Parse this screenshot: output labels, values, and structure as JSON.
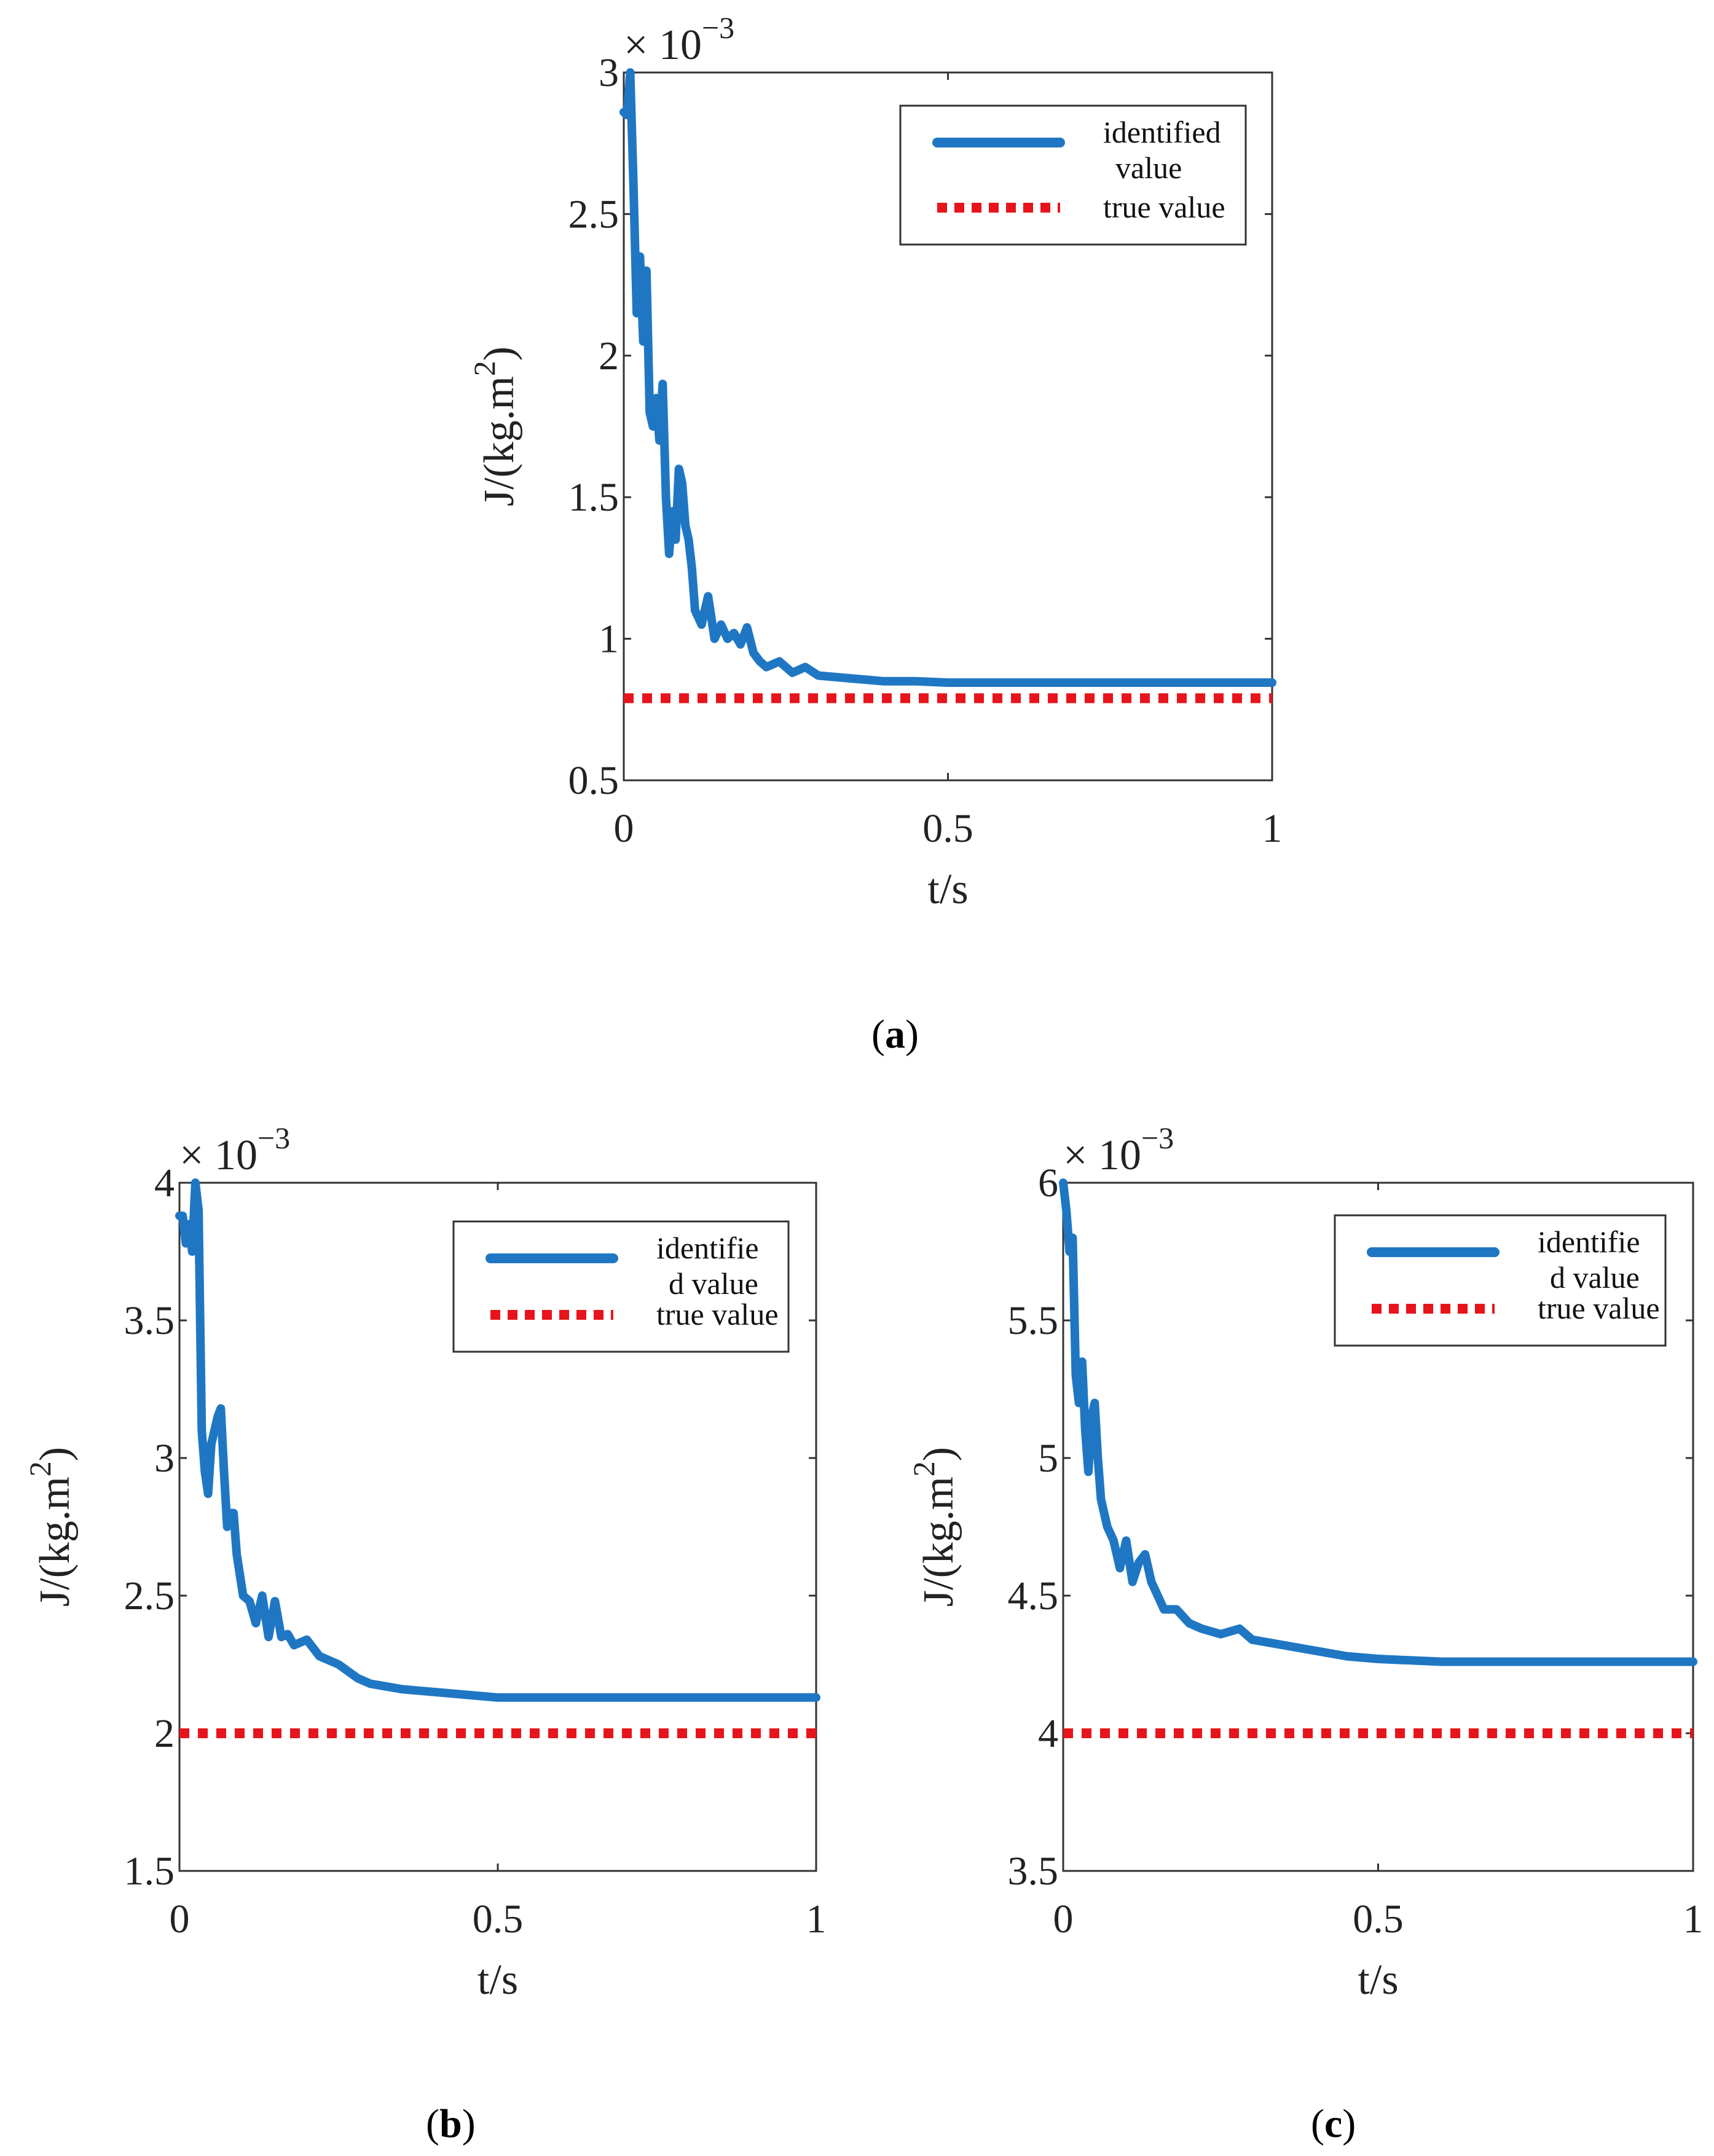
{
  "chart_data": [
    {
      "id": "a",
      "type": "line",
      "caption_label": "a",
      "xlabel": "t/s",
      "ylabel_prefix": "J/(kg.m",
      "ylabel_exp": "2",
      "ylabel_suffix": ")",
      "multiplier": "× 10",
      "multiplier_exp": "−3",
      "xlim": [
        0,
        1
      ],
      "ylim": [
        0.5,
        3
      ],
      "xticks": [
        0,
        0.5,
        1
      ],
      "xtick_labels": [
        "0",
        "0.5",
        "1"
      ],
      "yticks": [
        0.5,
        1,
        1.5,
        2,
        2.5,
        3
      ],
      "ytick_labels": [
        "0.5",
        "1",
        "1.5",
        "2",
        "2.5",
        "3"
      ],
      "legend_position": "top-right",
      "series": [
        {
          "name": "identified value",
          "legend_lines": [
            "identified",
            "value"
          ],
          "style": "solid",
          "color": "#1f77c4",
          "x": [
            0,
            0.005,
            0.01,
            0.015,
            0.02,
            0.025,
            0.03,
            0.035,
            0.04,
            0.045,
            0.05,
            0.055,
            0.06,
            0.065,
            0.07,
            0.075,
            0.08,
            0.085,
            0.09,
            0.095,
            0.1,
            0.105,
            0.11,
            0.12,
            0.13,
            0.14,
            0.15,
            0.16,
            0.17,
            0.18,
            0.19,
            0.2,
            0.21,
            0.22,
            0.24,
            0.26,
            0.28,
            0.3,
            0.35,
            0.4,
            0.45,
            0.5,
            0.6,
            0.8,
            1.0
          ],
          "y": [
            2.86,
            2.85,
            3.0,
            2.6,
            2.15,
            2.35,
            2.05,
            2.3,
            1.8,
            1.75,
            1.85,
            1.7,
            1.9,
            1.5,
            1.3,
            1.45,
            1.35,
            1.6,
            1.55,
            1.4,
            1.35,
            1.25,
            1.1,
            1.05,
            1.15,
            1.0,
            1.05,
            1.0,
            1.02,
            0.98,
            1.04,
            0.95,
            0.92,
            0.9,
            0.92,
            0.88,
            0.9,
            0.87,
            0.86,
            0.85,
            0.85,
            0.845,
            0.845,
            0.845,
            0.845
          ]
        },
        {
          "name": "true value",
          "legend_lines": [
            "true value"
          ],
          "style": "dotted",
          "color": "#e8141b",
          "x": [
            0,
            1
          ],
          "y": [
            0.79,
            0.79
          ]
        }
      ]
    },
    {
      "id": "b",
      "type": "line",
      "caption_label": "b",
      "xlabel": "t/s",
      "ylabel_prefix": "J/(kg.m",
      "ylabel_exp": "2",
      "ylabel_suffix": ")",
      "multiplier": "× 10",
      "multiplier_exp": "−3",
      "xlim": [
        0,
        1
      ],
      "ylim": [
        1.5,
        4
      ],
      "xticks": [
        0,
        0.5,
        1
      ],
      "xtick_labels": [
        "0",
        "0.5",
        "1"
      ],
      "yticks": [
        1.5,
        2,
        2.5,
        3,
        3.5,
        4
      ],
      "ytick_labels": [
        "1.5",
        "2",
        "2.5",
        "3",
        "3.5",
        "4"
      ],
      "legend_position": "top-right",
      "series": [
        {
          "name": "identified value",
          "legend_lines": [
            "identifie",
            "d value"
          ],
          "style": "solid",
          "color": "#1f77c4",
          "x": [
            0,
            0.005,
            0.01,
            0.015,
            0.02,
            0.025,
            0.03,
            0.035,
            0.04,
            0.045,
            0.05,
            0.06,
            0.065,
            0.07,
            0.075,
            0.08,
            0.085,
            0.09,
            0.1,
            0.11,
            0.12,
            0.13,
            0.14,
            0.15,
            0.16,
            0.17,
            0.18,
            0.2,
            0.22,
            0.25,
            0.28,
            0.3,
            0.35,
            0.4,
            0.5,
            0.7,
            1.0
          ],
          "y": [
            3.88,
            3.88,
            3.78,
            3.85,
            3.75,
            4.0,
            3.9,
            3.1,
            2.95,
            2.87,
            3.05,
            3.15,
            3.18,
            2.95,
            2.75,
            2.8,
            2.8,
            2.65,
            2.5,
            2.48,
            2.4,
            2.5,
            2.35,
            2.48,
            2.35,
            2.36,
            2.32,
            2.34,
            2.28,
            2.25,
            2.2,
            2.18,
            2.16,
            2.15,
            2.13,
            2.13,
            2.13
          ]
        },
        {
          "name": "true value",
          "legend_lines": [
            "true value"
          ],
          "style": "dotted",
          "color": "#e8141b",
          "x": [
            0,
            1
          ],
          "y": [
            2.0,
            2.0
          ]
        }
      ]
    },
    {
      "id": "c",
      "type": "line",
      "caption_label": "c",
      "xlabel": "t/s",
      "ylabel_prefix": "J/(kg.m",
      "ylabel_exp": "2",
      "ylabel_suffix": ")",
      "multiplier": "× 10",
      "multiplier_exp": "−3",
      "xlim": [
        0,
        1
      ],
      "ylim": [
        3.5,
        6
      ],
      "xticks": [
        0,
        0.5,
        1
      ],
      "xtick_labels": [
        "0",
        "0.5",
        "1"
      ],
      "yticks": [
        3.5,
        4,
        4.5,
        5,
        5.5,
        6
      ],
      "ytick_labels": [
        "3.5",
        "4",
        "4.5",
        "5",
        "5.5",
        "6"
      ],
      "legend_position": "top-right",
      "series": [
        {
          "name": "identified value",
          "legend_lines": [
            "identifie",
            "d value"
          ],
          "style": "solid",
          "color": "#1f77c4",
          "x": [
            0,
            0.005,
            0.01,
            0.015,
            0.02,
            0.025,
            0.03,
            0.035,
            0.04,
            0.045,
            0.05,
            0.055,
            0.06,
            0.065,
            0.07,
            0.08,
            0.09,
            0.1,
            0.11,
            0.12,
            0.13,
            0.14,
            0.15,
            0.16,
            0.18,
            0.2,
            0.22,
            0.25,
            0.28,
            0.3,
            0.35,
            0.4,
            0.45,
            0.5,
            0.6,
            0.8,
            1.0
          ],
          "y": [
            6.0,
            5.9,
            5.75,
            5.8,
            5.3,
            5.2,
            5.35,
            5.1,
            4.95,
            5.15,
            5.2,
            5.0,
            4.85,
            4.8,
            4.75,
            4.7,
            4.6,
            4.7,
            4.55,
            4.62,
            4.65,
            4.55,
            4.5,
            4.45,
            4.45,
            4.4,
            4.38,
            4.36,
            4.38,
            4.34,
            4.32,
            4.3,
            4.28,
            4.27,
            4.26,
            4.26,
            4.26
          ]
        },
        {
          "name": "true value",
          "legend_lines": [
            "true value"
          ],
          "style": "dotted",
          "color": "#e8141b",
          "x": [
            0,
            1
          ],
          "y": [
            4.0,
            4.0
          ]
        }
      ]
    }
  ]
}
